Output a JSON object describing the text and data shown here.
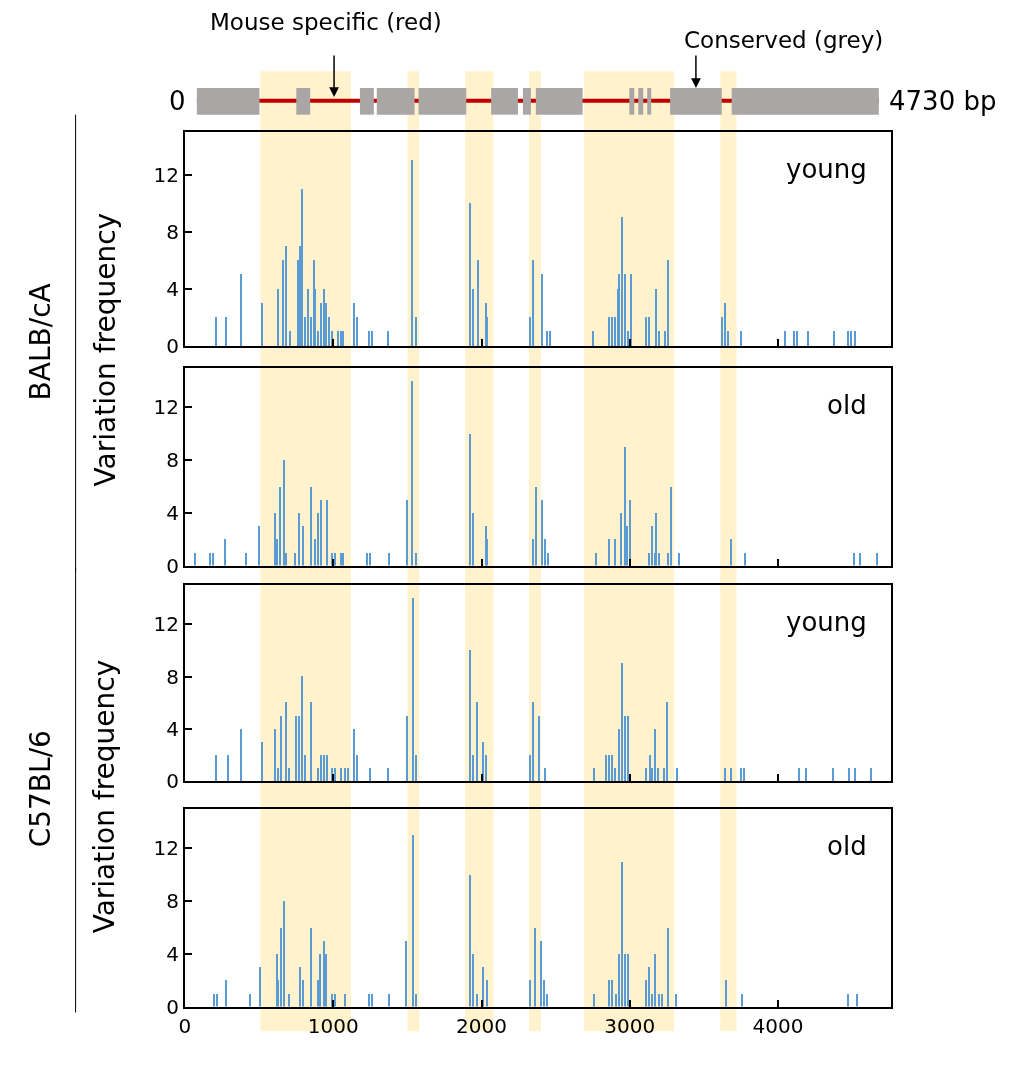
{
  "chart_data": [
    {
      "type": "other",
      "annotations": [
        "Mouse specific (red)",
        "Conserved (grey)",
        "0",
        "4730 bp"
      ]
    },
    {
      "type": "bar",
      "color": "#5b9bd5",
      "xlim": [
        0,
        4760
      ],
      "xticks": [
        0,
        1000,
        2000,
        3000,
        4000
      ],
      "ylim": [
        0,
        15
      ],
      "yticks": [
        0,
        4,
        8,
        12
      ],
      "tick_labels": "y",
      "ylabel": "Variation frequency",
      "annotations": [
        "young",
        "BALB/cA"
      ],
      "bands": [
        {
          "axis": "x",
          "from": 510,
          "to": 1120,
          "color": "#fff2cc"
        },
        {
          "axis": "x",
          "from": 1500,
          "to": 1580,
          "color": "#fff2cc"
        },
        {
          "axis": "x",
          "from": 1890,
          "to": 2080,
          "color": "#fff2cc"
        },
        {
          "axis": "x",
          "from": 2320,
          "to": 2400,
          "color": "#fff2cc"
        },
        {
          "axis": "x",
          "from": 2690,
          "to": 3300,
          "color": "#fff2cc"
        },
        {
          "axis": "x",
          "from": 3610,
          "to": 3720,
          "color": "#fff2cc"
        }
      ],
      "x": [
        210,
        280,
        380,
        520,
        625,
        660,
        680,
        710,
        760,
        780,
        790,
        810,
        830,
        850,
        870,
        880,
        900,
        920,
        940,
        950,
        970,
        990,
        1030,
        1050,
        1070,
        1140,
        1160,
        1240,
        1260,
        1370,
        1530,
        1560,
        1920,
        1940,
        1980,
        2030,
        2040,
        2330,
        2350,
        2410,
        2440,
        2460,
        2750,
        2860,
        2880,
        2900,
        2920,
        2930,
        2950,
        2970,
        2990,
        3010,
        3110,
        3130,
        3180,
        3200,
        3240,
        3260,
        3620,
        3640,
        3660,
        3750,
        4050,
        4110,
        4130,
        4200,
        4380,
        4470,
        4490,
        4520
      ],
      "values": [
        2,
        2,
        5,
        3,
        4,
        6,
        7,
        1,
        6,
        7,
        11,
        2,
        4,
        2,
        6,
        4,
        1,
        3,
        4,
        3,
        2,
        1,
        1,
        1,
        1,
        3,
        2,
        1,
        1,
        1,
        13,
        2,
        10,
        4,
        6,
        3,
        2,
        2,
        6,
        5,
        1,
        1,
        1,
        2,
        2,
        2,
        4,
        5,
        9,
        5,
        1,
        5,
        2,
        2,
        4,
        1,
        1,
        6,
        2,
        3,
        1,
        1,
        1,
        1,
        1,
        1,
        1,
        1,
        1,
        1
      ]
    },
    {
      "type": "bar",
      "color": "#5b9bd5",
      "xlim": [
        0,
        4760
      ],
      "xticks": [
        0,
        1000,
        2000,
        3000,
        4000
      ],
      "ylim": [
        0,
        15
      ],
      "yticks": [
        0,
        4,
        8,
        12
      ],
      "tick_labels": "y",
      "annotations": [
        "old"
      ],
      "bands": [
        {
          "axis": "x",
          "from": 510,
          "to": 1120,
          "color": "#fff2cc"
        },
        {
          "axis": "x",
          "from": 1500,
          "to": 1580,
          "color": "#fff2cc"
        },
        {
          "axis": "x",
          "from": 1890,
          "to": 2080,
          "color": "#fff2cc"
        },
        {
          "axis": "x",
          "from": 2320,
          "to": 2400,
          "color": "#fff2cc"
        },
        {
          "axis": "x",
          "from": 2690,
          "to": 3300,
          "color": "#fff2cc"
        },
        {
          "axis": "x",
          "from": 3610,
          "to": 3720,
          "color": "#fff2cc"
        }
      ],
      "x": [
        70,
        170,
        190,
        270,
        410,
        500,
        610,
        620,
        640,
        670,
        680,
        740,
        770,
        800,
        850,
        880,
        900,
        920,
        960,
        990,
        1010,
        1050,
        1070,
        1230,
        1250,
        1380,
        1500,
        1530,
        1560,
        1920,
        1940,
        2030,
        2040,
        2350,
        2370,
        2410,
        2430,
        2450,
        2770,
        2860,
        2900,
        2940,
        2970,
        2980,
        3000,
        3130,
        3150,
        3170,
        3180,
        3200,
        3260,
        3280,
        3330,
        3680,
        3780,
        4510,
        4550,
        4670
      ],
      "values": [
        1,
        1,
        1,
        2,
        1,
        3,
        4,
        2,
        6,
        8,
        1,
        1,
        4,
        3,
        6,
        2,
        4,
        5,
        5,
        1,
        1,
        1,
        1,
        1,
        1,
        1,
        5,
        14,
        1,
        10,
        4,
        3,
        2,
        2,
        6,
        5,
        2,
        1,
        1,
        2,
        2,
        4,
        9,
        3,
        5,
        1,
        3,
        1,
        4,
        1,
        1,
        6,
        1,
        2,
        1,
        1,
        1,
        1
      ]
    },
    {
      "type": "bar",
      "color": "#5b9bd5",
      "xlim": [
        0,
        4760
      ],
      "xticks": [
        0,
        1000,
        2000,
        3000,
        4000
      ],
      "ylim": [
        0,
        15
      ],
      "yticks": [
        0,
        4,
        8,
        12
      ],
      "tick_labels": "y",
      "ylabel": "Variation frequency",
      "annotations": [
        "young",
        "C57BL/6"
      ],
      "bands": [
        {
          "axis": "x",
          "from": 510,
          "to": 1120,
          "color": "#fff2cc"
        },
        {
          "axis": "x",
          "from": 1500,
          "to": 1580,
          "color": "#fff2cc"
        },
        {
          "axis": "x",
          "from": 1890,
          "to": 2080,
          "color": "#fff2cc"
        },
        {
          "axis": "x",
          "from": 2320,
          "to": 2400,
          "color": "#fff2cc"
        },
        {
          "axis": "x",
          "from": 2690,
          "to": 3300,
          "color": "#fff2cc"
        },
        {
          "axis": "x",
          "from": 3610,
          "to": 3720,
          "color": "#fff2cc"
        }
      ],
      "x": [
        210,
        290,
        380,
        520,
        610,
        630,
        650,
        680,
        700,
        750,
        770,
        790,
        810,
        850,
        900,
        920,
        940,
        960,
        990,
        1010,
        1050,
        1080,
        1100,
        1140,
        1160,
        1250,
        1370,
        1500,
        1540,
        1560,
        1920,
        1940,
        1970,
        2010,
        2030,
        2330,
        2350,
        2390,
        2430,
        2760,
        2840,
        2860,
        2880,
        2900,
        2930,
        2950,
        2970,
        2990,
        3110,
        3140,
        3150,
        3170,
        3190,
        3230,
        3250,
        3320,
        3640,
        3680,
        3750,
        3770,
        4140,
        4190,
        4370,
        4480,
        4520,
        4630
      ],
      "values": [
        2,
        2,
        4,
        3,
        4,
        1,
        5,
        6,
        1,
        5,
        5,
        8,
        2,
        6,
        1,
        2,
        2,
        2,
        1,
        1,
        1,
        1,
        1,
        4,
        2,
        1,
        1,
        5,
        14,
        2,
        10,
        2,
        6,
        3,
        2,
        2,
        6,
        5,
        1,
        1,
        2,
        2,
        2,
        1,
        4,
        9,
        5,
        5,
        1,
        2,
        1,
        4,
        1,
        1,
        6,
        1,
        1,
        1,
        1,
        1,
        1,
        1,
        1,
        1,
        1,
        1
      ]
    },
    {
      "type": "bar",
      "color": "#5b9bd5",
      "xlim": [
        0,
        4760
      ],
      "xticks": [
        0,
        1000,
        2000,
        3000,
        4000
      ],
      "ylim": [
        0,
        15
      ],
      "yticks": [
        0,
        4,
        8,
        12
      ],
      "annotations": [
        "old"
      ],
      "bands": [
        {
          "axis": "x",
          "from": 510,
          "to": 1120,
          "color": "#fff2cc"
        },
        {
          "axis": "x",
          "from": 1500,
          "to": 1580,
          "color": "#fff2cc"
        },
        {
          "axis": "x",
          "from": 1890,
          "to": 2080,
          "color": "#fff2cc"
        },
        {
          "axis": "x",
          "from": 2320,
          "to": 2400,
          "color": "#fff2cc"
        },
        {
          "axis": "x",
          "from": 2690,
          "to": 3300,
          "color": "#fff2cc"
        },
        {
          "axis": "x",
          "from": 3610,
          "to": 3720,
          "color": "#fff2cc"
        }
      ],
      "x": [
        200,
        220,
        280,
        440,
        510,
        620,
        630,
        650,
        670,
        700,
        780,
        800,
        850,
        900,
        910,
        940,
        950,
        990,
        1010,
        1080,
        1240,
        1260,
        1380,
        1490,
        1540,
        1560,
        1920,
        1940,
        1970,
        2010,
        2040,
        2330,
        2360,
        2400,
        2420,
        2440,
        2760,
        2860,
        2880,
        2910,
        2930,
        2950,
        2970,
        2990,
        3110,
        3130,
        3150,
        3170,
        3200,
        3220,
        3260,
        3310,
        3650,
        3760,
        4470,
        4530
      ],
      "values": [
        1,
        1,
        2,
        1,
        3,
        4,
        2,
        6,
        8,
        1,
        3,
        2,
        6,
        2,
        4,
        5,
        4,
        1,
        1,
        1,
        1,
        1,
        1,
        5,
        13,
        1,
        10,
        4,
        1,
        3,
        2,
        2,
        6,
        5,
        2,
        1,
        1,
        2,
        2,
        1,
        4,
        11,
        4,
        4,
        2,
        3,
        1,
        4,
        1,
        1,
        6,
        1,
        2,
        1,
        1,
        1
      ]
    }
  ]
}
